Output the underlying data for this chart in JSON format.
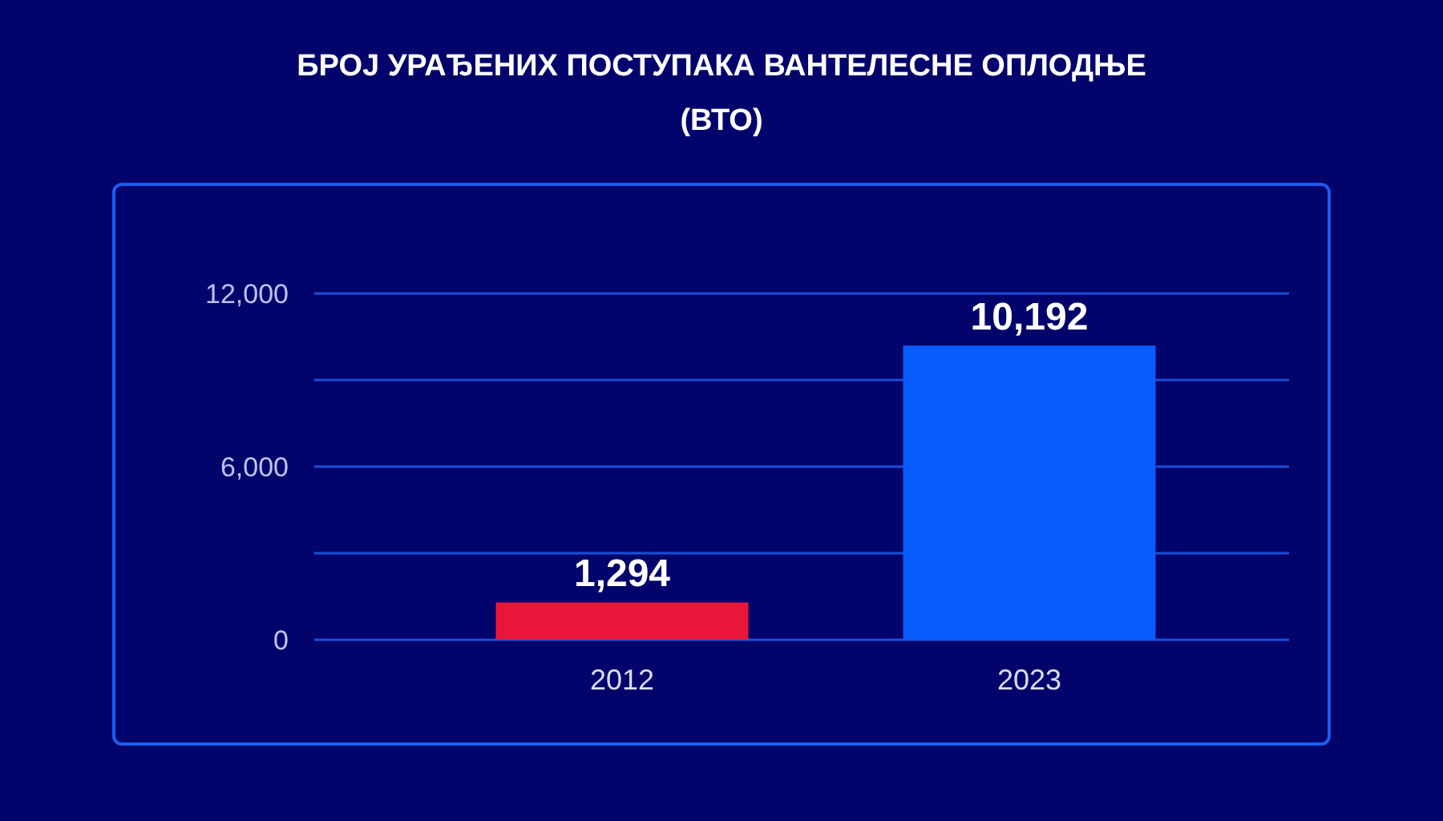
{
  "chart_data": {
    "type": "bar",
    "title": "БРОЈ УРАЂЕНИХ ПОСТУПАКА ВАНТЕЛЕСНЕ ОПЛОДЊЕ (ВТО)",
    "categories": [
      "2012",
      "2023"
    ],
    "values": [
      1294,
      10192
    ],
    "value_labels": [
      "1,294",
      "10,192"
    ],
    "colors": [
      "#e8173a",
      "#0a5cff"
    ],
    "ylim": [
      0,
      12000
    ],
    "yticks": [
      0,
      {
        "value": 3000,
        "label": null
      },
      {
        "value": 6000,
        "label": "6,000"
      },
      {
        "value": 9000,
        "label": null
      },
      {
        "value": 12000,
        "label": "12,000"
      }
    ],
    "grid": "y"
  }
}
